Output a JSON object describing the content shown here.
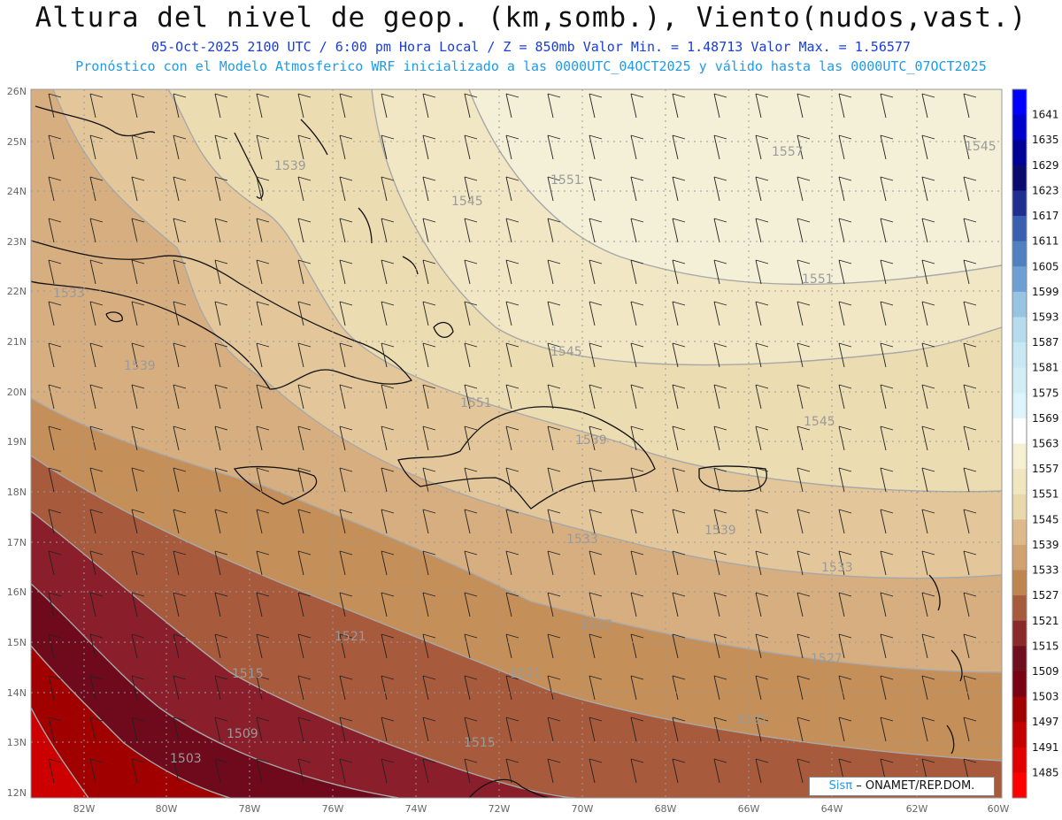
{
  "header": {
    "title": "Altura del nivel de geop. (km,somb.), Viento(nudos,vast.)",
    "line1": "05-Oct-2025  2100 UTC / 6:00 pm Hora Local / Z = 850mb    Valor Min. = 1.48713  Valor Max. = 1.56577",
    "line2": "Pronóstico con el Modelo Atmosferico WRF inicializado a las 0000UTC_04OCT2025 y válido hasta las  0000UTC_07OCT2025"
  },
  "map": {
    "lon_labels": [
      "82W",
      "80W",
      "78W",
      "76W",
      "74W",
      "72W",
      "70W",
      "68W",
      "66W",
      "64W",
      "62W",
      "60W"
    ],
    "lat_labels": [
      "26N",
      "25N",
      "24N",
      "23N",
      "22N",
      "21N",
      "20N",
      "19N",
      "18N",
      "17N",
      "16N",
      "15N",
      "14N",
      "13N",
      "12N"
    ],
    "contour_labels": [
      "1557",
      "1551",
      "1551",
      "1551",
      "1545",
      "1545",
      "1545",
      "1545",
      "1539",
      "1539",
      "1539",
      "1539",
      "1533",
      "1533",
      "1533",
      "1533",
      "1527",
      "1527",
      "1527",
      "1521",
      "1521",
      "1521",
      "1515",
      "1515",
      "1509",
      "1503"
    ]
  },
  "colorbar": {
    "labels": [
      "1641",
      "1635",
      "1629",
      "1623",
      "1617",
      "1611",
      "1605",
      "1599",
      "1593",
      "1587",
      "1581",
      "1575",
      "1569",
      "1563",
      "1557",
      "1551",
      "1545",
      "1539",
      "1533",
      "1527",
      "1521",
      "1515",
      "1509",
      "1503",
      "1497",
      "1491",
      "1485"
    ],
    "colors": [
      "#0000ff",
      "#0000cc",
      "#000099",
      "#0a0a6e",
      "#1f2f8f",
      "#3a5fb0",
      "#4f80c0",
      "#6fa0d4",
      "#98c4e4",
      "#b6dced",
      "#c8e8f4",
      "#d4eef8",
      "#ddf4fb",
      "#ffffff",
      "#f6f0d2",
      "#f1e6bf",
      "#ead8ad",
      "#deb989",
      "#d0a26f",
      "#be8550",
      "#a85a3d",
      "#8a2a2a",
      "#6e0f1f",
      "#7a0013",
      "#a10000",
      "#c20000",
      "#e00000",
      "#ff0000"
    ]
  },
  "credit": {
    "brand": "Sisπ",
    "text": "– ONAMET/REP.DOM."
  }
}
